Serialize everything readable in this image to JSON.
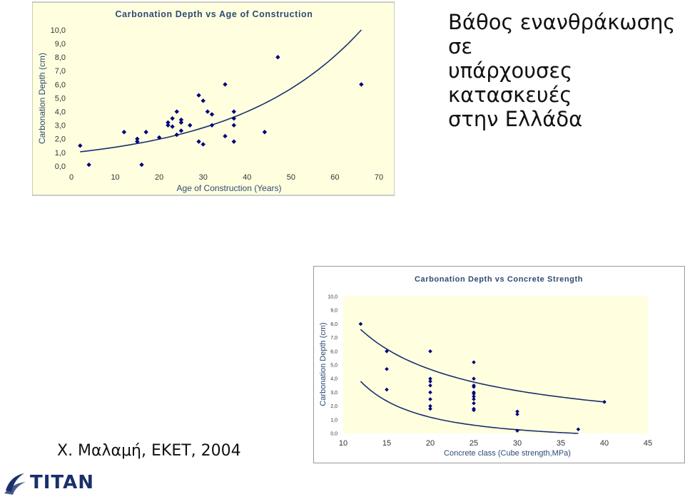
{
  "heading": {
    "line1": "Βάθος ενανθράκωσης σε",
    "line2": "υπάρχουσες κατασκευές",
    "line3": "στην Ελλάδα"
  },
  "source": "Χ. Μαλαμή, ΕΚΕΤ, 2004",
  "logo": {
    "text": "TITAN",
    "color": "#1a2f6b"
  },
  "colors": {
    "plot_background": "#ffffe0",
    "marker": "#000080",
    "trend": "#1a2f6b"
  },
  "chart_data": [
    {
      "type": "scatter",
      "title": "Carbonation Depth vs Age of Construction",
      "xlabel": "Age of Construction (Years)",
      "ylabel": "Carbonation Depth (cm)",
      "xlim": [
        0,
        70
      ],
      "ylim": [
        0,
        10
      ],
      "xticks": [
        "0",
        "10",
        "20",
        "30",
        "40",
        "50",
        "60",
        "70"
      ],
      "yticks": [
        "0,0",
        "1,0",
        "2,0",
        "3,0",
        "4,0",
        "5,0",
        "6,0",
        "7,0",
        "8,0",
        "9,0",
        "10,0"
      ],
      "grid": false,
      "points": [
        [
          2,
          1.5
        ],
        [
          4,
          0.1
        ],
        [
          12,
          2.5
        ],
        [
          15,
          2.0
        ],
        [
          15,
          1.8
        ],
        [
          16,
          0.1
        ],
        [
          17,
          2.5
        ],
        [
          20,
          2.1
        ],
        [
          22,
          3.2
        ],
        [
          22,
          3.0
        ],
        [
          23,
          3.5
        ],
        [
          23,
          2.9
        ],
        [
          24,
          4.0
        ],
        [
          24,
          2.3
        ],
        [
          25,
          3.4
        ],
        [
          25,
          3.2
        ],
        [
          25,
          2.6
        ],
        [
          27,
          3.0
        ],
        [
          29,
          5.2
        ],
        [
          29,
          1.8
        ],
        [
          30,
          4.8
        ],
        [
          30,
          1.6
        ],
        [
          31,
          4.0
        ],
        [
          32,
          3.8
        ],
        [
          32,
          3.0
        ],
        [
          35,
          6.0
        ],
        [
          35,
          2.2
        ],
        [
          37,
          4.0
        ],
        [
          37,
          3.5
        ],
        [
          37,
          3.0
        ],
        [
          37,
          1.8
        ],
        [
          44,
          2.5
        ],
        [
          47,
          8.0
        ],
        [
          66,
          6.0
        ]
      ],
      "trendline": {
        "type": "exponential",
        "x_range": [
          2,
          66
        ],
        "y_start": 1.05,
        "y_end": 10.0
      }
    },
    {
      "type": "scatter",
      "title": "Carbonation Depth vs Concrete Strength",
      "xlabel": "Concrete class (Cube strength,MPa)",
      "ylabel": "Carbonation Depth (cm)",
      "xlim": [
        10,
        45
      ],
      "ylim": [
        0,
        10
      ],
      "xticks": [
        "10",
        "15",
        "20",
        "25",
        "30",
        "35",
        "40",
        "45"
      ],
      "yticks": [
        "0,0",
        "1,0",
        "2,0",
        "3,0",
        "4,0",
        "5,0",
        "6,0",
        "7,0",
        "8,0",
        "9,0",
        "10,0"
      ],
      "grid": false,
      "points": [
        [
          12,
          8.0
        ],
        [
          15,
          6.0
        ],
        [
          15,
          4.7
        ],
        [
          15,
          3.2
        ],
        [
          20,
          6.0
        ],
        [
          20,
          4.0
        ],
        [
          20,
          3.8
        ],
        [
          20,
          3.5
        ],
        [
          20,
          3.0
        ],
        [
          20,
          2.5
        ],
        [
          20,
          2.0
        ],
        [
          20,
          1.8
        ],
        [
          25,
          5.2
        ],
        [
          25,
          4.0
        ],
        [
          25,
          3.5
        ],
        [
          25,
          3.4
        ],
        [
          25,
          3.0
        ],
        [
          25,
          2.9
        ],
        [
          25,
          2.7
        ],
        [
          25,
          2.5
        ],
        [
          25,
          2.2
        ],
        [
          25,
          1.8
        ],
        [
          25,
          1.7
        ],
        [
          30,
          1.6
        ],
        [
          30,
          1.4
        ],
        [
          30,
          0.2
        ],
        [
          37,
          0.3
        ],
        [
          40,
          2.3
        ]
      ],
      "trendlines": [
        {
          "type": "power",
          "x_range": [
            12,
            40
          ],
          "y_start": 7.6,
          "y_end": 2.3
        },
        {
          "type": "power",
          "x_range": [
            12,
            37
          ],
          "y_start": 3.8,
          "y_end": 0.0
        }
      ]
    }
  ]
}
